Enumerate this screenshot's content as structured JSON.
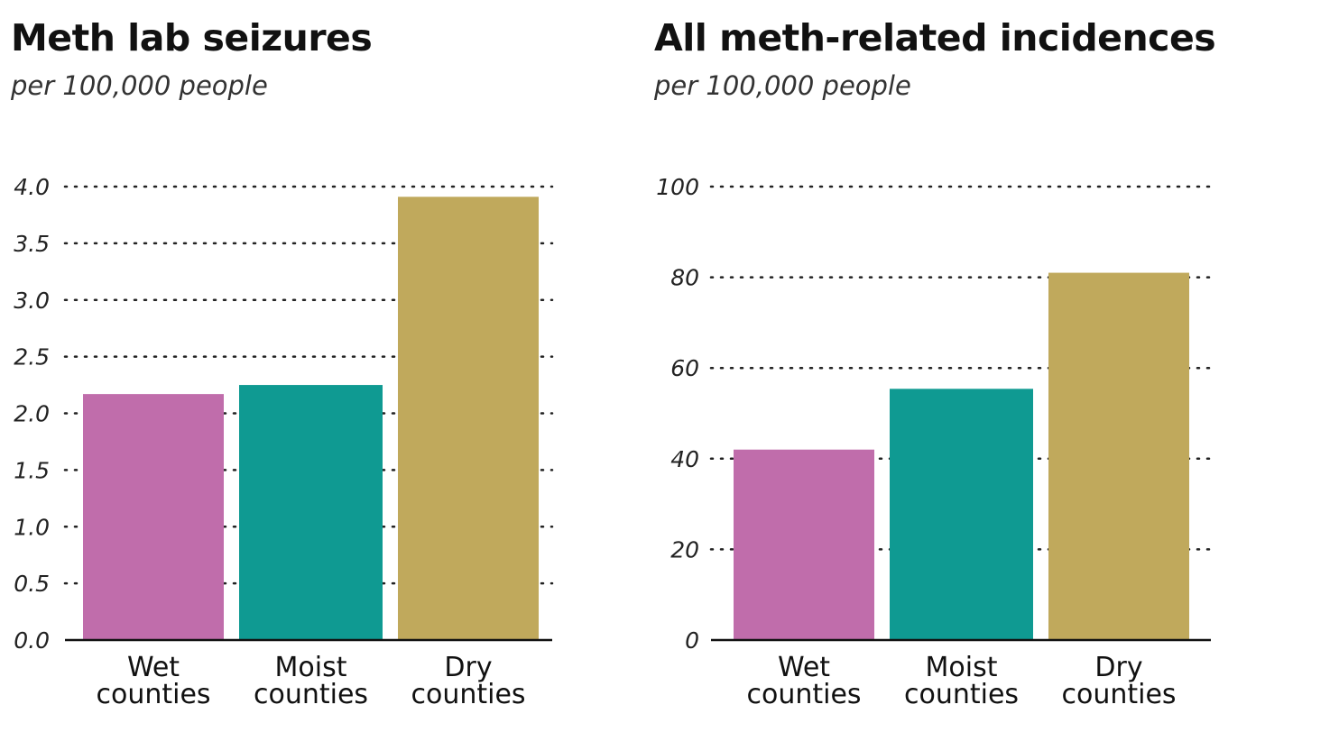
{
  "chart_data": [
    {
      "type": "bar",
      "title": "Meth lab seizures",
      "subtitle": "per 100,000 people",
      "categories": [
        [
          "Wet",
          "counties"
        ],
        [
          "Moist",
          "counties"
        ],
        [
          "Dry",
          "counties"
        ]
      ],
      "values": [
        2.17,
        2.25,
        3.91
      ],
      "colors": [
        "#c06dab",
        "#0f9a92",
        "#c0a95c"
      ],
      "ylim": [
        0,
        4.0
      ],
      "yticks": [
        "0.0",
        "0.5",
        "1.0",
        "1.5",
        "2.0",
        "2.5",
        "3.0",
        "3.5",
        "4.0"
      ],
      "xlabel": "",
      "ylabel": "",
      "grid": true
    },
    {
      "type": "bar",
      "title": "All meth-related incidences",
      "subtitle": "per 100,000 people",
      "categories": [
        [
          "Wet",
          "counties"
        ],
        [
          "Moist",
          "counties"
        ],
        [
          "Dry",
          "counties"
        ]
      ],
      "values": [
        42,
        55.4,
        81
      ],
      "colors": [
        "#c06dab",
        "#0f9a92",
        "#c0a95c"
      ],
      "ylim": [
        0,
        100
      ],
      "yticks": [
        "0",
        "20",
        "40",
        "60",
        "80",
        "100"
      ],
      "xlabel": "",
      "ylabel": "",
      "grid": true
    }
  ]
}
